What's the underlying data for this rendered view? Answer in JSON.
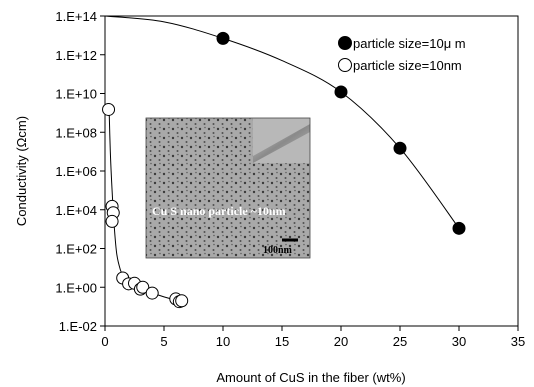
{
  "chart_data": {
    "type": "scatter",
    "xlabel": "Amount of CuS in the fiber (wt%)",
    "ylabel": "Conductivity (Ωcm)",
    "xlim": [
      0,
      35
    ],
    "ylim": [
      0.01,
      100000000000000.0
    ],
    "y_scale": "log",
    "grid": false,
    "legend_position": "top-right",
    "x_ticks": [
      "0",
      "5",
      "10",
      "15",
      "20",
      "25",
      "30",
      "35"
    ],
    "y_ticks": [
      "1.E-02",
      "1.E+00",
      "1.E+02",
      "1.E+04",
      "1.E+06",
      "1.E+08",
      "1.E+10",
      "1.E+12",
      "1.E+14"
    ],
    "series": [
      {
        "name": "particle size=10μ m",
        "marker": "filled-circle",
        "x": [
          10,
          20,
          25,
          30
        ],
        "y": [
          7000000000000.0,
          12000000000.0,
          15000000.0,
          1100.0
        ],
        "fit_curve": {
          "x": [
            0,
            5,
            10,
            15,
            20,
            25,
            30
          ],
          "y": [
            100000000000000.0,
            50000000000000.0,
            7000000000000.0,
            500000000000.0,
            12000000000.0,
            15000000.0,
            1100.0
          ]
        }
      },
      {
        "name": "particle size=10nm",
        "marker": "open-circle",
        "x": [
          0.3,
          0.6,
          0.7,
          0.6,
          1.5,
          2.0,
          2.5,
          3.0,
          3.2,
          4.0,
          6.0,
          6.3,
          6.5
        ],
        "y": [
          1500000000.0,
          15000.0,
          7000.0,
          2500.0,
          3.0,
          1.5,
          1.6,
          0.8,
          1.0,
          0.5,
          0.25,
          0.18,
          0.2
        ],
        "fit_curve": {
          "x": [
            0.35,
            0.45,
            0.6,
            0.8,
            1.0,
            1.3,
            1.6,
            2.0,
            2.5,
            3.0,
            4.0,
            5.0,
            6.0,
            6.5
          ],
          "y": [
            1500000000.0,
            10000000.0,
            100000.0,
            1000.0,
            50,
            8,
            3,
            1.6,
            1.1,
            0.8,
            0.5,
            0.32,
            0.22,
            0.2
          ]
        }
      }
    ],
    "inset": {
      "label": "Cu S nano particle ~10nm",
      "scale_bar": "100nm"
    }
  }
}
